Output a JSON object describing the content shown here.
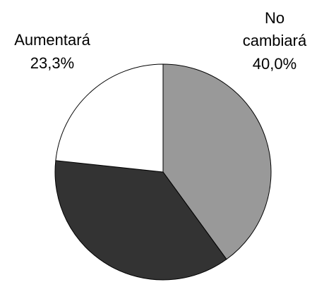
{
  "chart_data": {
    "type": "pie",
    "slices": [
      {
        "label": "No cambiará",
        "label_lines": [
          "No",
          "cambiará"
        ],
        "value": 40.0,
        "value_label": "40,0%",
        "color": "#999999"
      },
      {
        "label": "",
        "label_lines": [],
        "value": 36.7,
        "value_label": "",
        "color": "#333333"
      },
      {
        "label": "Aumentará",
        "label_lines": [
          "Aumentará"
        ],
        "value": 23.3,
        "value_label": "23,3%",
        "color": "#ffffff"
      }
    ],
    "start_angle": "top",
    "direction": "clockwise"
  }
}
